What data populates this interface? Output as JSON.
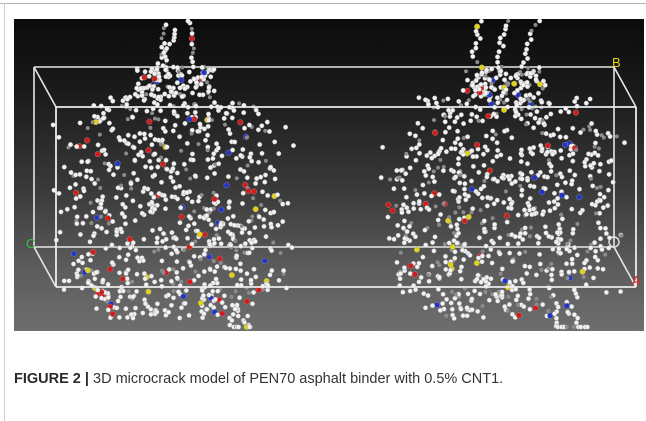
{
  "figure": {
    "label": "FIGURE 2 |",
    "caption_text": "3D microcrack model of PEN70 asphalt binder with 0.5% CNT1.",
    "axis_labels": {
      "a": "A",
      "b": "B",
      "c": "C"
    },
    "colors": {
      "background_top": "#0b0b0b",
      "background_bottom": "#6e6e6e",
      "box_edges": "#e6e6e6",
      "atom_hydrogen": "#f2f2f2",
      "atom_carbon": "#8a8a8a",
      "atom_oxygen": "#d21c1c",
      "atom_nitrogen": "#2334c8",
      "atom_sulfur": "#e0d21a",
      "label_a": "#e2262a",
      "label_b": "#e8d21a",
      "label_c": "#2cc23a"
    }
  }
}
